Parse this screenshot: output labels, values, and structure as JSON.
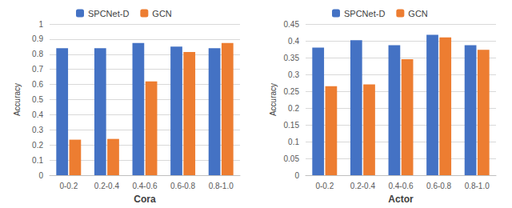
{
  "chart_data": [
    {
      "type": "bar",
      "xlabel": "Cora",
      "ylabel": "Accuracy",
      "categories": [
        "0-0.2",
        "0.2-0.4",
        "0.4-0.6",
        "0.6-0.8",
        "0.8-1.0"
      ],
      "series": [
        {
          "name": "SPCNet-D",
          "color": "#4472c4",
          "values": [
            0.84,
            0.84,
            0.875,
            0.85,
            0.84
          ]
        },
        {
          "name": "GCN",
          "color": "#ed7d31",
          "values": [
            0.235,
            0.24,
            0.62,
            0.815,
            0.875
          ]
        }
      ],
      "ylim": [
        0,
        1
      ],
      "yticks": [
        0,
        0.1,
        0.2,
        0.3,
        0.4,
        0.5,
        0.6,
        0.7,
        0.8,
        0.9,
        1
      ],
      "grid": true,
      "legend": "top"
    },
    {
      "type": "bar",
      "xlabel": "Actor",
      "ylabel": "Accuracy",
      "categories": [
        "0-0.2",
        "0.2-0.4",
        "0.4-0.6",
        "0.6-0.8",
        "0.8-1.0"
      ],
      "series": [
        {
          "name": "SPCNet-D",
          "color": "#4472c4",
          "values": [
            0.38,
            0.402,
            0.387,
            0.418,
            0.387
          ]
        },
        {
          "name": "GCN",
          "color": "#ed7d31",
          "values": [
            0.265,
            0.27,
            0.345,
            0.41,
            0.373
          ]
        }
      ],
      "ylim": [
        0,
        0.45
      ],
      "yticks": [
        0,
        0.05,
        0.1,
        0.15,
        0.2,
        0.25,
        0.3,
        0.35,
        0.4,
        0.45
      ],
      "grid": true,
      "legend": "top"
    }
  ]
}
